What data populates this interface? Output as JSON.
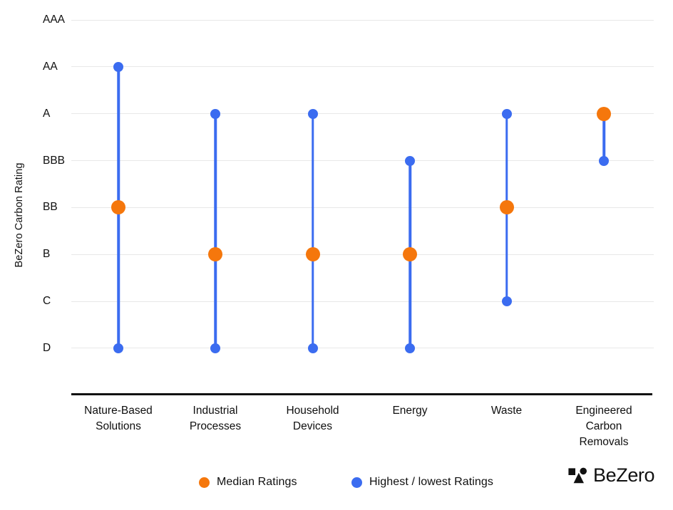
{
  "accent_colors": {
    "median_orange": "#F5770C",
    "range_blue": "#3B6CF0",
    "gridline_gray": "#E8E8E8",
    "axis_black": "#111111"
  },
  "axis": {
    "y_label": "BeZero Carbon Rating"
  },
  "chart_data": {
    "type": "scatter",
    "subtype": "dumbbell-range",
    "title": "",
    "xlabel": "",
    "ylabel": "BeZero Carbon Rating",
    "grid": "horizontal gridlines on",
    "legend_position": "bottom",
    "y_ticks": [
      "AAA",
      "AA",
      "A",
      "BBB",
      "BB",
      "B",
      "C",
      "D"
    ],
    "ylim": [
      "D",
      "AAA"
    ],
    "categories": [
      "Nature-Based Solutions",
      "Industrial Processes",
      "Household Devices",
      "Energy",
      "Waste",
      "Engineered Carbon Removals"
    ],
    "category_label_lines": [
      [
        "Nature-Based",
        "Solutions"
      ],
      [
        "Industrial",
        "Processes"
      ],
      [
        "Household",
        "Devices"
      ],
      [
        "Energy"
      ],
      [
        "Waste"
      ],
      [
        "Engineered",
        "Carbon",
        "Removals"
      ]
    ],
    "series": [
      {
        "name": "Median Ratings",
        "color": "#F5770C",
        "values": [
          "BB",
          "B",
          "B",
          "B",
          "BB",
          "A"
        ]
      },
      {
        "name": "Highest Ratings",
        "color": "#3B6CF0",
        "values": [
          "AA",
          "A",
          "A",
          "BBB",
          "A",
          "A"
        ]
      },
      {
        "name": "Lowest Ratings",
        "color": "#3B6CF0",
        "values": [
          "D",
          "D",
          "D",
          "D",
          "C",
          "BBB"
        ]
      }
    ]
  },
  "legend": {
    "items": [
      {
        "label": "Median Ratings",
        "color": "#F5770C"
      },
      {
        "label": "Highest / lowest Ratings",
        "color": "#3B6CF0"
      }
    ]
  },
  "brand": {
    "logo_text": "BeZero"
  }
}
